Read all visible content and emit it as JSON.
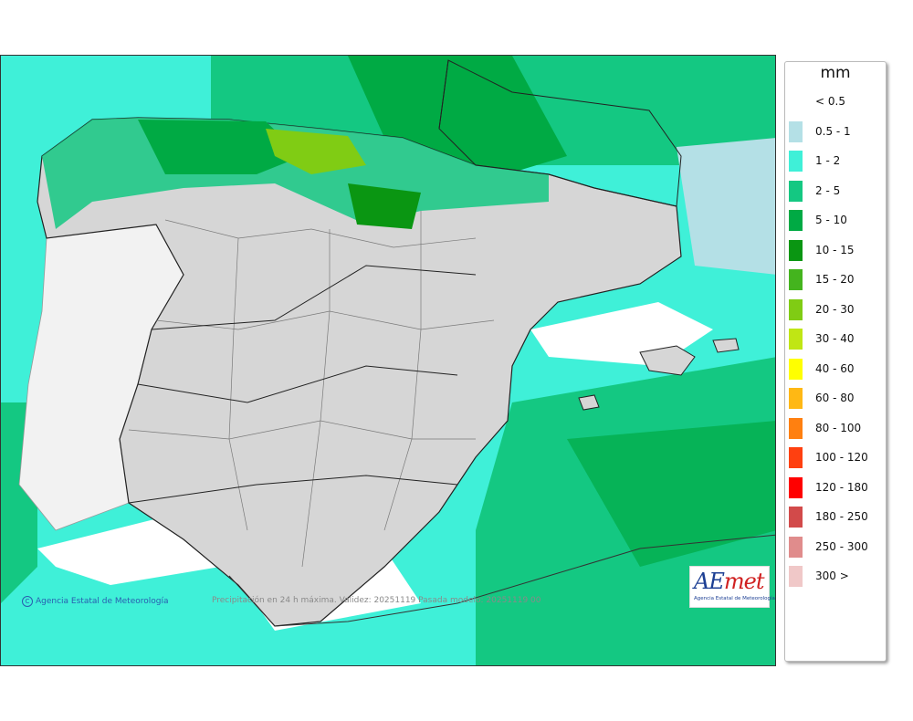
{
  "legend": {
    "unit": "mm",
    "items": [
      {
        "label": "< 0.5",
        "color": "#ffffff"
      },
      {
        "label": "0.5 - 1",
        "color": "#b4e0e6"
      },
      {
        "label": "1 - 2",
        "color": "#3ff0d8"
      },
      {
        "label": "2 - 5",
        "color": "#14c882"
      },
      {
        "label": "5 - 10",
        "color": "#00aa44"
      },
      {
        "label": "10 - 15",
        "color": "#0a9612"
      },
      {
        "label": "15 - 20",
        "color": "#44b41e"
      },
      {
        "label": "20 - 30",
        "color": "#80cc14"
      },
      {
        "label": "30 - 40",
        "color": "#c0e614"
      },
      {
        "label": "40 - 60",
        "color": "#ffff00"
      },
      {
        "label": "60 - 80",
        "color": "#ffb814"
      },
      {
        "label": "80 - 100",
        "color": "#ff8010"
      },
      {
        "label": "100 - 120",
        "color": "#ff4010"
      },
      {
        "label": "120 - 180",
        "color": "#ff0000"
      },
      {
        "label": "180 - 250",
        "color": "#d24a4a"
      },
      {
        "label": "250 - 300",
        "color": "#e08c8c"
      },
      {
        "label": "300 >",
        "color": "#f0c8c8"
      }
    ]
  },
  "footer": {
    "credit": "Agencia Estatal de Meteorología",
    "validity": "Precipitación en 24 h máxima. Validez: 20251119 Pasada modelo: 20251119 00"
  },
  "logo": {
    "brand_a": "AE",
    "brand_b": "met",
    "subtitle": "Agencia Estatal de Meteorología"
  }
}
